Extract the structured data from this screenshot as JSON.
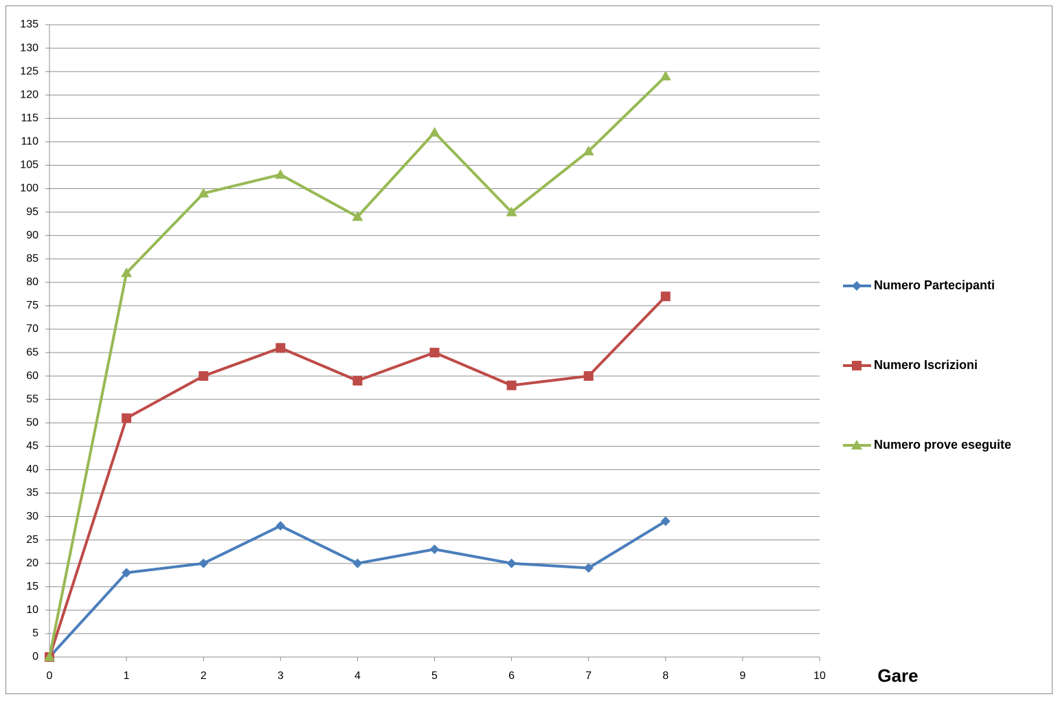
{
  "chart_data": {
    "type": "line",
    "x_label": "Gare",
    "x": [
      0,
      1,
      2,
      3,
      4,
      5,
      6,
      7,
      8
    ],
    "series": [
      {
        "name": "Numero Partecipanti",
        "color": "#4a7ebb",
        "marker": "diamond",
        "values": [
          0,
          18,
          20,
          28,
          20,
          23,
          20,
          19,
          29
        ]
      },
      {
        "name": "Numero Iscrizioni",
        "color": "#be4b48",
        "marker": "square",
        "values": [
          0,
          51,
          60,
          66,
          59,
          65,
          58,
          60,
          77
        ]
      },
      {
        "name": "Numero prove eseguite",
        "color": "#98b954",
        "marker": "triangle",
        "values": [
          0,
          82,
          99,
          103,
          94,
          112,
          95,
          108,
          124
        ]
      }
    ],
    "xlim": [
      0,
      10
    ],
    "xticks": [
      0,
      1,
      2,
      3,
      4,
      5,
      6,
      7,
      8,
      9,
      10
    ],
    "ylim": [
      0,
      135
    ],
    "yticks": [
      0,
      5,
      10,
      15,
      20,
      25,
      30,
      35,
      40,
      45,
      50,
      55,
      60,
      65,
      70,
      75,
      80,
      85,
      90,
      95,
      100,
      105,
      110,
      115,
      120,
      125,
      130,
      135
    ],
    "grid": true,
    "legend": "right"
  }
}
